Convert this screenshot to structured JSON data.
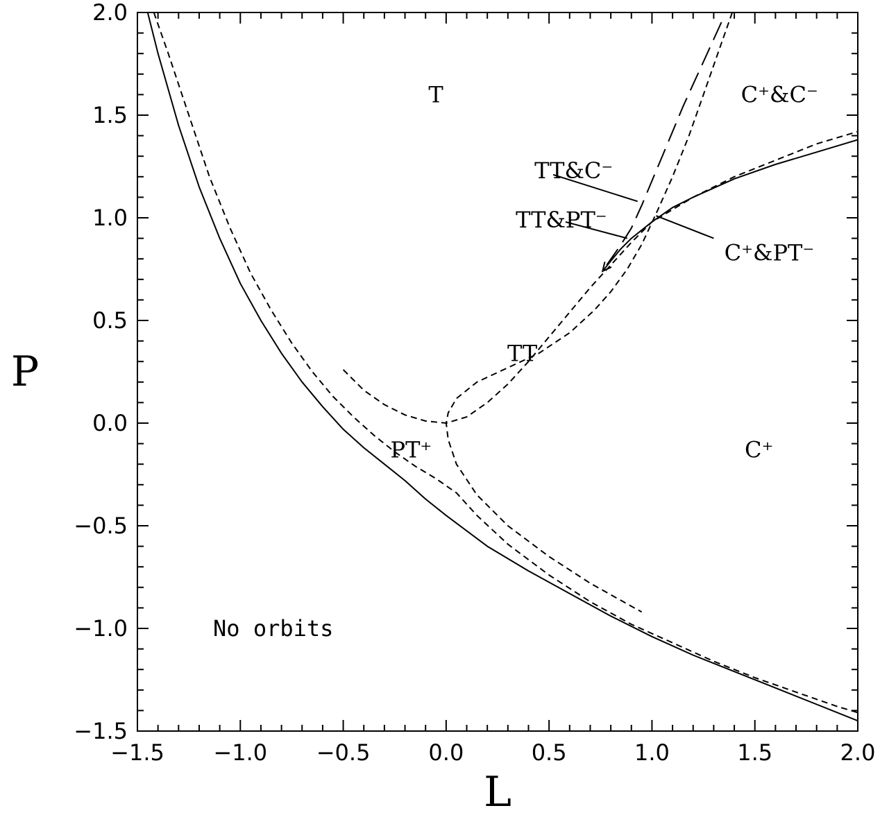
{
  "chart_data": {
    "type": "line",
    "xlabel": "L",
    "ylabel": "P",
    "xlim": [
      -1.5,
      2.0
    ],
    "ylim": [
      -1.5,
      2.0
    ],
    "xticks": [
      "−1.5",
      "−1.0",
      "−0.5",
      "0.0",
      "0.5",
      "1.0",
      "1.5",
      "2.0"
    ],
    "yticks": [
      "−1.5",
      "−1.0",
      "−0.5",
      "0.0",
      "0.5",
      "1.0",
      "1.5",
      "2.0"
    ],
    "xtick_values": [
      -1.5,
      -1.0,
      -0.5,
      0.0,
      0.5,
      1.0,
      1.5,
      2.0
    ],
    "ytick_values": [
      -1.5,
      -1.0,
      -0.5,
      0.0,
      0.5,
      1.0,
      1.5,
      2.0
    ],
    "grid": false,
    "series": [
      {
        "style": "solid",
        "x": [
          -1.45,
          -1.4,
          -1.3,
          -1.2,
          -1.1,
          -1.0,
          -0.9,
          -0.8,
          -0.7,
          -0.6,
          -0.5,
          -0.4,
          -0.3,
          -0.2,
          -0.1,
          0.0,
          0.2,
          0.4,
          0.6,
          0.8,
          1.0,
          1.2,
          1.4,
          1.6,
          1.8,
          2.0
        ],
        "y": [
          2.0,
          1.8,
          1.45,
          1.15,
          0.9,
          0.68,
          0.5,
          0.34,
          0.2,
          0.08,
          -0.03,
          -0.12,
          -0.2,
          -0.28,
          -0.37,
          -0.45,
          -0.6,
          -0.72,
          -0.83,
          -0.94,
          -1.04,
          -1.13,
          -1.21,
          -1.29,
          -1.37,
          -1.45
        ]
      },
      {
        "style": "dashed",
        "x": [
          -1.42,
          -1.35,
          -1.25,
          -1.15,
          -1.05,
          -0.95,
          -0.85,
          -0.75,
          -0.65,
          -0.55,
          -0.45,
          -0.35,
          -0.25,
          -0.15,
          -0.05,
          0.05,
          0.15,
          0.3,
          0.5,
          0.7,
          0.9,
          1.1,
          1.3,
          1.5,
          1.7,
          1.9,
          2.0
        ],
        "y": [
          2.0,
          1.8,
          1.5,
          1.2,
          0.95,
          0.73,
          0.55,
          0.39,
          0.25,
          0.13,
          0.03,
          -0.06,
          -0.14,
          -0.21,
          -0.27,
          -0.34,
          -0.45,
          -0.59,
          -0.74,
          -0.87,
          -0.98,
          -1.07,
          -1.16,
          -1.24,
          -1.31,
          -1.38,
          -1.41
        ]
      },
      {
        "style": "dashed",
        "x": [
          -0.5,
          -0.4,
          -0.3,
          -0.2,
          -0.1,
          0.0,
          0.1,
          0.2,
          0.3,
          0.4,
          0.5,
          0.6,
          0.7,
          0.8,
          0.9,
          1.0,
          1.2,
          1.4,
          1.6,
          1.8,
          2.0
        ],
        "y": [
          0.26,
          0.16,
          0.09,
          0.04,
          0.01,
          0.0,
          0.03,
          0.1,
          0.19,
          0.3,
          0.42,
          0.54,
          0.66,
          0.77,
          0.88,
          0.98,
          1.1,
          1.2,
          1.28,
          1.36,
          1.42
        ]
      },
      {
        "style": "dashed",
        "x": [
          1.39,
          1.32,
          1.25,
          1.18,
          1.1,
          1.02,
          0.95,
          0.88,
          0.8,
          0.72,
          0.6,
          0.45,
          0.3,
          0.15,
          0.05,
          0.01,
          0.0,
          0.01,
          0.05,
          0.15,
          0.3,
          0.5,
          0.7,
          0.95
        ],
        "y": [
          2.0,
          1.8,
          1.6,
          1.4,
          1.2,
          1.02,
          0.87,
          0.75,
          0.64,
          0.55,
          0.44,
          0.34,
          0.27,
          0.2,
          0.12,
          0.05,
          0.0,
          -0.08,
          -0.2,
          -0.35,
          -0.5,
          -0.65,
          -0.78,
          -0.92
        ]
      },
      {
        "style": "solid",
        "x": [
          0.76,
          0.8,
          0.85,
          0.9,
          0.95,
          1.0,
          1.1,
          1.2,
          1.4,
          1.6,
          1.8,
          2.0
        ],
        "y": [
          0.74,
          0.79,
          0.85,
          0.9,
          0.94,
          0.98,
          1.05,
          1.1,
          1.19,
          1.26,
          1.32,
          1.38
        ]
      },
      {
        "style": "longdash",
        "x": [
          0.78,
          0.85,
          0.9,
          0.95,
          1.0,
          1.05,
          1.1,
          1.15,
          1.2,
          1.25,
          1.3,
          1.35
        ],
        "y": [
          0.77,
          0.87,
          0.95,
          1.06,
          1.18,
          1.3,
          1.42,
          1.54,
          1.65,
          1.76,
          1.87,
          1.98
        ]
      }
    ],
    "annotations": [
      {
        "text": "T",
        "x": -0.05,
        "y": 1.6
      },
      {
        "text": "C⁺&C⁻",
        "x": 1.62,
        "y": 1.6
      },
      {
        "text": "TT&C⁻",
        "x": 0.62,
        "y": 1.23
      },
      {
        "text": "TT&PT⁻",
        "x": 0.56,
        "y": 0.99
      },
      {
        "text": "C⁺&PT⁻",
        "x": 1.57,
        "y": 0.83
      },
      {
        "text": "TT",
        "x": 0.37,
        "y": 0.34
      },
      {
        "text": "PT⁺",
        "x": -0.17,
        "y": -0.13
      },
      {
        "text": "C⁺",
        "x": 1.52,
        "y": -0.13
      },
      {
        "text": "No orbits",
        "x": -0.84,
        "y": -1.0
      }
    ]
  }
}
